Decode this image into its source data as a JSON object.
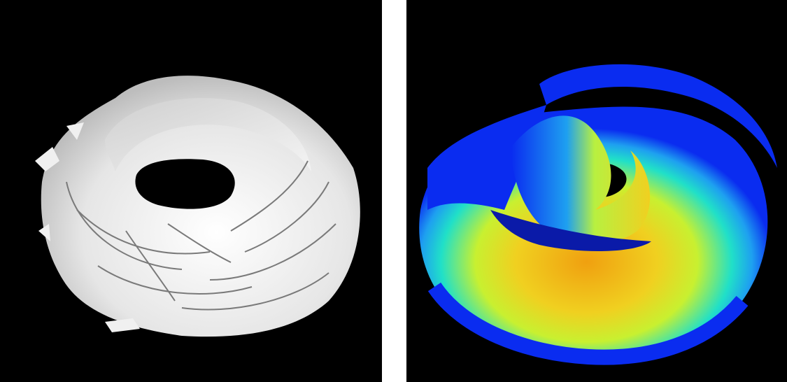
{
  "panels": [
    {
      "id": "left",
      "render": "grayscale-isosurface",
      "background": "#000000",
      "surface_color": "#e8e8e8"
    },
    {
      "id": "right",
      "render": "colormapped-surface",
      "background": "#000000",
      "colormap": [
        "#0a2cf0",
        "#1ea0f0",
        "#20e0c8",
        "#b8f040",
        "#f0f020",
        "#f0a010"
      ]
    }
  ]
}
